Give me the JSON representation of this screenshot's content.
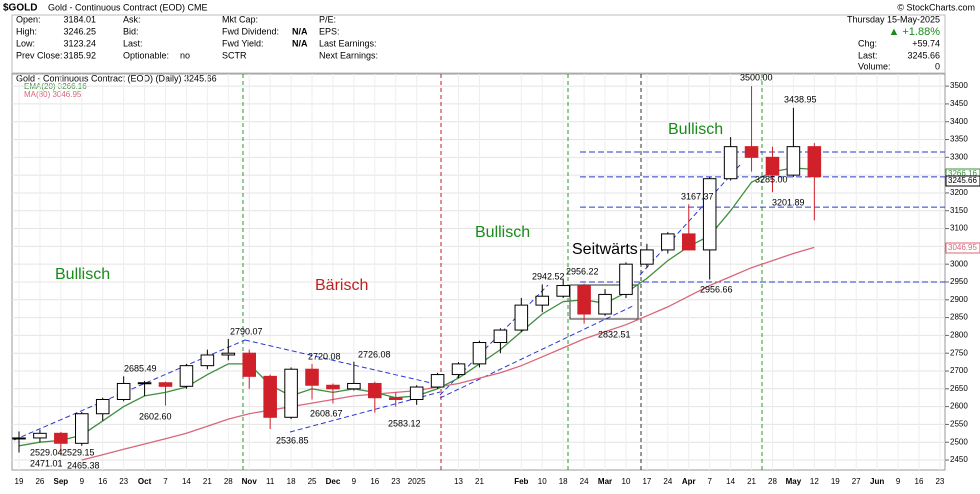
{
  "chart_data": {
    "type": "candlestick",
    "title": "$GOLD",
    "subtitle": "Gold - Continuous Contract (EOD) CME",
    "credit": "© StockCharts.com",
    "info": [
      [
        "Open:",
        "3184.01"
      ],
      [
        "High:",
        "3246.25"
      ],
      [
        "Low:",
        "3123.24"
      ],
      [
        "Prev Close:",
        "3185.92"
      ],
      [
        "Ask:",
        ""
      ],
      [
        "Bid:",
        ""
      ],
      [
        "Last:",
        ""
      ],
      [
        "Optionable:",
        "no"
      ],
      [
        "Mkt Cap:",
        ""
      ],
      [
        "Fwd Dividend:",
        "N/A"
      ],
      [
        "Fwd Yield:",
        "N/A"
      ],
      [
        "SCTR",
        ""
      ],
      [
        "P/E:",
        ""
      ],
      [
        "EPS:",
        ""
      ],
      [
        "Last Earnings:",
        ""
      ],
      [
        "Next Earnings:",
        ""
      ]
    ],
    "quote": {
      "date": "Thursday  15-May-2025",
      "change_pct": "▲ +1.88%",
      "chg_label": "Chg:",
      "chg": "+59.74",
      "last_label": "Last:",
      "last": "3245.66",
      "vol_label": "Volume:",
      "vol": "0"
    },
    "legend": [
      "Gold - Continuous Contract (EOD) (Daily) 3245.66",
      "EMA(20) 3266.16",
      "MA(80) 3046.95"
    ],
    "categories": [
      "19",
      "26",
      "Sep",
      "9",
      "16",
      "23",
      "Oct",
      "7",
      "14",
      "21",
      "28",
      "Nov",
      "11",
      "18",
      "25",
      "Dec",
      "9",
      "16",
      "23",
      "2025",
      null,
      "13",
      "21",
      null,
      "Feb",
      "10",
      "18",
      "24",
      "Mar",
      "10",
      "17",
      "24",
      "Apr",
      "7",
      "14",
      "21",
      "28",
      "May",
      "12",
      "19",
      "27",
      "Jun",
      "9",
      "16",
      "23"
    ],
    "open": [
      2510,
      2512,
      2525,
      2497,
      2580,
      2620,
      2665,
      2667,
      2657,
      2715,
      2745,
      2750,
      2685,
      2570,
      2705,
      2660,
      2650,
      2665,
      2625,
      2620,
      2655,
      2690,
      2720,
      2780,
      2815,
      2885,
      2910,
      2940,
      2860,
      2915,
      3000,
      3040,
      3085,
      3040,
      3240,
      3330,
      3300,
      3250,
      3330,
      null,
      null,
      null,
      null,
      null,
      null
    ],
    "high": [
      2530,
      2535,
      2529,
      2585,
      2625,
      2685,
      2672,
      2670,
      2720,
      2760,
      2790,
      2760,
      2690,
      2710,
      2720,
      2665,
      2726,
      2670,
      2640,
      2660,
      2695,
      2725,
      2785,
      2820,
      2905,
      2943,
      2956,
      2945,
      2930,
      3005,
      3057,
      3090,
      3168,
      3245,
      3357,
      3500,
      3330,
      3439,
      3340,
      null,
      null,
      null,
      null,
      null,
      null
    ],
    "low": [
      2471,
      2500,
      2465,
      2490,
      2560,
      2615,
      2630,
      2603,
      2650,
      2705,
      2730,
      2650,
      2537,
      2565,
      2620,
      2609,
      2645,
      2583,
      2600,
      2605,
      2650,
      2680,
      2710,
      2750,
      2810,
      2865,
      2905,
      2833,
      2855,
      2905,
      2990,
      3030,
      3050,
      2957,
      3235,
      3260,
      3202,
      3245,
      3123,
      null,
      null,
      null,
      null,
      null,
      null
    ],
    "close": [
      2512,
      2525,
      2497,
      2580,
      2620,
      2665,
      2667,
      2657,
      2715,
      2745,
      2750,
      2685,
      2570,
      2705,
      2660,
      2650,
      2665,
      2625,
      2620,
      2655,
      2690,
      2720,
      2780,
      2815,
      2885,
      2910,
      2940,
      2860,
      2915,
      3000,
      3040,
      3085,
      3040,
      3240,
      3330,
      3300,
      3250,
      3330,
      3245.66,
      null,
      null,
      null,
      null,
      null,
      null
    ],
    "up_color": "#ffffff",
    "down_color": "#d0202a",
    "series": [
      {
        "name": "EMA(20)",
        "color": "#3f8f3f",
        "values": [
          2490,
          2500,
          2505,
          2520,
          2560,
          2600,
          2630,
          2640,
          2655,
          2690,
          2720,
          2720,
          2660,
          2630,
          2650,
          2640,
          2650,
          2640,
          2625,
          2630,
          2650,
          2680,
          2720,
          2760,
          2810,
          2860,
          2895,
          2900,
          2890,
          2920,
          2960,
          3010,
          3050,
          3080,
          3150,
          3230,
          3260,
          3270,
          3266.16,
          null,
          null,
          null,
          null,
          null,
          null
        ]
      },
      {
        "name": "MA(80)",
        "color": "#d9677a",
        "values": [
          null,
          null,
          null,
          2450,
          2465,
          2480,
          2495,
          2510,
          2525,
          2545,
          2565,
          2580,
          2590,
          2600,
          2610,
          2620,
          2630,
          2635,
          2640,
          2645,
          2655,
          2665,
          2680,
          2695,
          2715,
          2740,
          2765,
          2790,
          2810,
          2830,
          2855,
          2880,
          2910,
          2940,
          2965,
          2990,
          3010,
          3030,
          3046.95,
          null,
          null,
          null,
          null,
          null,
          null
        ]
      }
    ],
    "levels": [
      3315,
      3245,
      3160,
      2950
    ],
    "right_labels": [
      {
        "text": "3266.16",
        "color": "#3f8f3f"
      },
      {
        "text": "3245.66",
        "color": "#000000"
      },
      {
        "text": "3046.95",
        "color": "#d9677a"
      }
    ],
    "price_labels": [
      "2529.04",
      "2471.01",
      "2529.15",
      "2465.38",
      "2685.49",
      "2602.60",
      "2790.07",
      "2536.85",
      "2720.08",
      "2608.67",
      "2726.08",
      "2583.12",
      "2942.52",
      "2956.22",
      "2832.51",
      "3167.37",
      "2956.66",
      "3500.00",
      "3438.95",
      "3285.00",
      "3201.89"
    ],
    "phases": [
      "Bullisch",
      "Bärisch",
      "Bullisch",
      "Seitwärts",
      "Bullisch"
    ],
    "ylim": [
      2422,
      3534
    ],
    "yticks": [
      2450,
      2500,
      2550,
      2600,
      2650,
      2700,
      2750,
      2800,
      2850,
      2900,
      2950,
      3000,
      3050,
      3100,
      3150,
      3200,
      3250,
      3300,
      3350,
      3400,
      3450,
      3500
    ],
    "grid": true
  }
}
